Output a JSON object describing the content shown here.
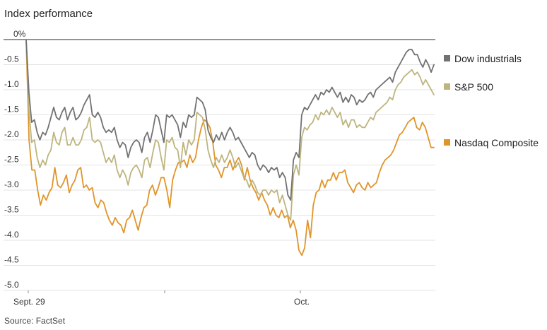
{
  "chart_data": {
    "type": "line",
    "title": "Index performance",
    "source": "Source: FactSet",
    "xlabel": "",
    "ylabel": "",
    "ylim": [
      -5.0,
      0
    ],
    "y_ticks": [
      "0%",
      "-0.5",
      "-1.0",
      "-1.5",
      "-2.0",
      "-2.5",
      "-3.0",
      "-3.5",
      "-4.0",
      "-4.5",
      "-5.0"
    ],
    "x_ticks": [
      "Sept. 29",
      "Oct."
    ],
    "grid": true,
    "legend_position": "right",
    "series": [
      {
        "name": "Dow industrials",
        "color": "#727272",
        "values": [
          0,
          -1.05,
          -1.65,
          -1.6,
          -1.85,
          -2.0,
          -1.85,
          -1.9,
          -1.75,
          -1.55,
          -1.35,
          -1.55,
          -1.6,
          -1.45,
          -1.35,
          -1.6,
          -1.45,
          -1.35,
          -1.6,
          -1.55,
          -1.45,
          -1.3,
          -1.2,
          -1.1,
          -1.5,
          -1.55,
          -1.45,
          -1.55,
          -1.75,
          -1.85,
          -1.8,
          -1.85,
          -1.75,
          -2.0,
          -2.15,
          -2.05,
          -2.1,
          -2.35,
          -2.15,
          -2.05,
          -2.0,
          -2.05,
          -2.25,
          -1.95,
          -1.85,
          -2.05,
          -1.8,
          -1.5,
          -1.55,
          -1.8,
          -2.05,
          -1.5,
          -1.55,
          -1.5,
          -1.6,
          -1.7,
          -1.95,
          -1.65,
          -1.75,
          -1.5,
          -1.55,
          -1.5,
          -1.15,
          -1.2,
          -1.25,
          -1.4,
          -1.8,
          -1.95,
          -2.05,
          -1.9,
          -2.0,
          -1.85,
          -2.0,
          -1.85,
          -1.75,
          -1.85,
          -2.0,
          -1.95,
          -2.05,
          -2.15,
          -2.25,
          -2.35,
          -2.25,
          -2.3,
          -2.5,
          -2.6,
          -2.5,
          -2.55,
          -2.65,
          -2.55,
          -2.6,
          -2.55,
          -2.75,
          -2.65,
          -2.75,
          -3.1,
          -3.2,
          -2.4,
          -2.25,
          -2.35,
          -1.5,
          -1.35,
          -1.4,
          -1.3,
          -1.2,
          -1.1,
          -1.2,
          -1.05,
          -1.1,
          -1.0,
          -1.05,
          -0.95,
          -1.05,
          -1.15,
          -1.05,
          -1.25,
          -1.15,
          -1.25,
          -1.1,
          -1.15,
          -1.3,
          -1.2,
          -1.25,
          -1.2,
          -1.1,
          -1.05,
          -1.15,
          -1.0,
          -0.95,
          -0.9,
          -0.85,
          -0.8,
          -0.75,
          -0.85,
          -0.65,
          -0.55,
          -0.45,
          -0.35,
          -0.25,
          -0.2,
          -0.2,
          -0.3,
          -0.3,
          -0.45,
          -0.55,
          -0.4,
          -0.5,
          -0.65,
          -0.5
        ]
      },
      {
        "name": "S&P 500",
        "color": "#bdb57e",
        "values": [
          0,
          -1.4,
          -2.05,
          -2.0,
          -2.35,
          -2.55,
          -2.4,
          -2.5,
          -2.3,
          -2.2,
          -1.85,
          -2.05,
          -2.1,
          -1.85,
          -1.75,
          -2.1,
          -2.1,
          -1.95,
          -2.1,
          -2.1,
          -2.0,
          -1.8,
          -1.75,
          -1.55,
          -2.0,
          -2.05,
          -2.0,
          -2.05,
          -2.25,
          -2.45,
          -2.35,
          -2.45,
          -2.3,
          -2.6,
          -2.75,
          -2.6,
          -2.7,
          -2.9,
          -2.65,
          -2.55,
          -2.5,
          -2.6,
          -2.75,
          -2.4,
          -2.35,
          -2.55,
          -2.25,
          -2.0,
          -2.05,
          -2.35,
          -2.6,
          -2.0,
          -2.05,
          -1.95,
          -2.15,
          -2.2,
          -2.55,
          -2.05,
          -2.3,
          -2.0,
          -2.1,
          -2.0,
          -1.45,
          -1.5,
          -1.55,
          -1.8,
          -2.2,
          -2.4,
          -2.55,
          -2.35,
          -2.45,
          -2.3,
          -2.45,
          -2.35,
          -2.2,
          -2.35,
          -2.55,
          -2.45,
          -2.6,
          -2.75,
          -2.8,
          -2.95,
          -2.8,
          -2.9,
          -3.05,
          -3.1,
          -3.0,
          -3.0,
          -3.1,
          -3.0,
          -3.05,
          -3.0,
          -3.25,
          -3.1,
          -3.3,
          -3.5,
          -3.6,
          -2.7,
          -2.5,
          -2.7,
          -1.95,
          -1.75,
          -1.8,
          -1.7,
          -1.65,
          -1.5,
          -1.6,
          -1.45,
          -1.5,
          -1.4,
          -1.5,
          -1.35,
          -1.45,
          -1.55,
          -1.45,
          -1.7,
          -1.6,
          -1.75,
          -1.6,
          -1.6,
          -1.75,
          -1.7,
          -1.75,
          -1.75,
          -1.65,
          -1.55,
          -1.6,
          -1.45,
          -1.4,
          -1.35,
          -1.3,
          -1.25,
          -1.15,
          -1.2,
          -1.0,
          -0.9,
          -0.85,
          -0.75,
          -0.7,
          -0.65,
          -0.6,
          -0.7,
          -0.65,
          -0.75,
          -0.9,
          -0.8,
          -0.9,
          -1.0,
          -1.1
        ]
      },
      {
        "name": "Nasdaq Composite",
        "color": "#e0952a",
        "values": [
          0,
          -2.0,
          -2.6,
          -2.6,
          -3.0,
          -3.3,
          -3.1,
          -3.2,
          -3.05,
          -2.95,
          -2.55,
          -2.9,
          -2.95,
          -2.85,
          -2.7,
          -3.05,
          -2.9,
          -2.8,
          -2.6,
          -2.55,
          -2.95,
          -2.9,
          -3.0,
          -2.95,
          -3.25,
          -3.35,
          -3.2,
          -3.25,
          -3.45,
          -3.6,
          -3.7,
          -3.55,
          -3.65,
          -3.7,
          -3.85,
          -3.6,
          -3.55,
          -3.4,
          -3.6,
          -3.8,
          -3.55,
          -3.35,
          -3.3,
          -3.0,
          -2.9,
          -3.1,
          -2.95,
          -2.75,
          -2.75,
          -3.0,
          -3.35,
          -2.8,
          -2.6,
          -2.45,
          -2.45,
          -2.4,
          -2.55,
          -2.3,
          -2.45,
          -2.35,
          -2.0,
          -1.75,
          -1.6,
          -1.65,
          -1.75,
          -2.05,
          -2.5,
          -2.6,
          -2.75,
          -2.55,
          -2.55,
          -2.4,
          -2.6,
          -2.45,
          -2.35,
          -2.5,
          -2.8,
          -2.55,
          -2.8,
          -2.95,
          -3.05,
          -3.2,
          -3.05,
          -3.2,
          -3.3,
          -3.5,
          -3.35,
          -3.5,
          -3.55,
          -3.4,
          -3.55,
          -3.5,
          -3.75,
          -3.6,
          -3.8,
          -4.2,
          -4.3,
          -4.15,
          -3.6,
          -3.95,
          -3.3,
          -3.05,
          -3.0,
          -2.8,
          -2.95,
          -2.8,
          -2.8,
          -2.65,
          -2.8,
          -2.65,
          -2.65,
          -2.6,
          -2.85,
          -2.95,
          -3.05,
          -2.9,
          -2.85,
          -2.95,
          -3.0,
          -2.85,
          -2.95,
          -2.9,
          -2.85,
          -2.65,
          -2.5,
          -2.4,
          -2.35,
          -2.3,
          -2.2,
          -2.05,
          -1.9,
          -1.85,
          -1.75,
          -1.65,
          -1.6,
          -1.55,
          -1.75,
          -1.8,
          -1.65,
          -1.75,
          -1.95,
          -2.15,
          -2.15
        ]
      }
    ]
  }
}
